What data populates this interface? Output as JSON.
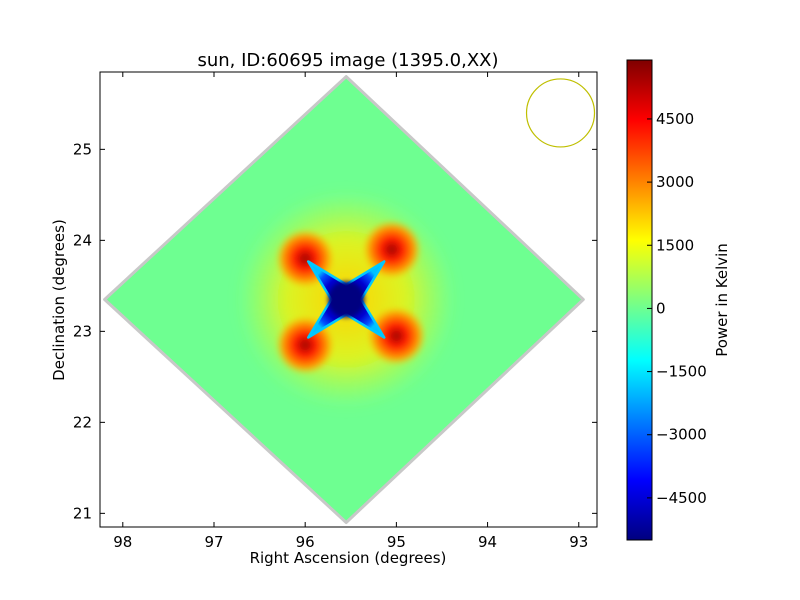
{
  "chart_data": {
    "type": "heatmap",
    "title": "sun, ID:60695 image (1395.0,XX)",
    "xlabel": "Right Ascension (degrees)",
    "ylabel": "Declination (degrees)",
    "xlim": [
      98.25,
      92.8
    ],
    "ylim": [
      20.85,
      25.85
    ],
    "x_ticks": [
      98,
      97,
      96,
      95,
      94,
      93
    ],
    "y_ticks": [
      21,
      22,
      23,
      24,
      25
    ],
    "x_tick_labels": [
      "98",
      "97",
      "96",
      "95",
      "94",
      "93"
    ],
    "y_tick_labels": [
      "21",
      "22",
      "23",
      "24",
      "25"
    ],
    "grid": false,
    "colormap": "jet",
    "field_outline": [
      [
        95.55,
        25.8
      ],
      [
        98.2,
        23.35
      ],
      [
        95.55,
        20.9
      ],
      [
        92.95,
        23.35
      ]
    ],
    "background_level": 0,
    "features": [
      {
        "kind": "minimum",
        "ra": 95.55,
        "dec": 23.35,
        "value": -5500
      },
      {
        "kind": "maximum",
        "ra": 96.0,
        "dec": 23.8,
        "value": 5000
      },
      {
        "kind": "maximum",
        "ra": 95.05,
        "dec": 23.9,
        "value": 5200
      },
      {
        "kind": "maximum",
        "ra": 96.0,
        "dec": 22.85,
        "value": 5200
      },
      {
        "kind": "maximum",
        "ra": 95.0,
        "dec": 22.95,
        "value": 5000
      }
    ],
    "beam_circle": {
      "ra": 93.2,
      "dec": 25.4,
      "color": "#bfbf00"
    },
    "colorbar": {
      "label": "Power in Kelvin",
      "min": -5500,
      "max": 5900,
      "ticks": [
        -4500,
        -3000,
        -1500,
        0,
        1500,
        3000,
        4500
      ],
      "tick_labels": [
        "−4500",
        "−3000",
        "−1500",
        "0",
        "1500",
        "3000",
        "4500"
      ]
    }
  }
}
